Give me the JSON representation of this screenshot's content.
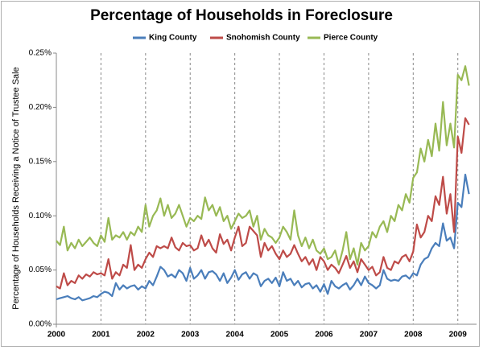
{
  "chart_data": {
    "type": "line",
    "title": "Percentage of Households in Foreclosure",
    "y_label": "Percentage of Households Receiving a Notice of Trustee Sale",
    "x": [
      2000,
      2000.083,
      2000.167,
      2000.25,
      2000.333,
      2000.417,
      2000.5,
      2000.583,
      2000.667,
      2000.75,
      2000.833,
      2000.917,
      2001,
      2001.083,
      2001.167,
      2001.25,
      2001.333,
      2001.417,
      2001.5,
      2001.583,
      2001.667,
      2001.75,
      2001.833,
      2001.917,
      2002,
      2002.083,
      2002.167,
      2002.25,
      2002.333,
      2002.417,
      2002.5,
      2002.583,
      2002.667,
      2002.75,
      2002.833,
      2002.917,
      2003,
      2003.083,
      2003.167,
      2003.25,
      2003.333,
      2003.417,
      2003.5,
      2003.583,
      2003.667,
      2003.75,
      2003.833,
      2003.917,
      2004,
      2004.083,
      2004.167,
      2004.25,
      2004.333,
      2004.417,
      2004.5,
      2004.583,
      2004.667,
      2004.75,
      2004.833,
      2004.917,
      2005,
      2005.083,
      2005.167,
      2005.25,
      2005.333,
      2005.417,
      2005.5,
      2005.583,
      2005.667,
      2005.75,
      2005.833,
      2005.917,
      2006,
      2006.083,
      2006.167,
      2006.25,
      2006.333,
      2006.417,
      2006.5,
      2006.583,
      2006.667,
      2006.75,
      2006.833,
      2006.917,
      2007,
      2007.083,
      2007.167,
      2007.25,
      2007.333,
      2007.417,
      2007.5,
      2007.583,
      2007.667,
      2007.75,
      2007.833,
      2007.917,
      2008,
      2008.083,
      2008.167,
      2008.25,
      2008.333,
      2008.417,
      2008.5,
      2008.583,
      2008.667,
      2008.75,
      2008.833,
      2008.917,
      2009,
      2009.083,
      2009.167,
      2009.25
    ],
    "series": [
      {
        "name": "King County",
        "color": "#4a7ebb",
        "values": [
          0.023,
          0.024,
          0.025,
          0.026,
          0.024,
          0.023,
          0.025,
          0.022,
          0.023,
          0.024,
          0.026,
          0.025,
          0.028,
          0.03,
          0.029,
          0.026,
          0.038,
          0.032,
          0.036,
          0.033,
          0.035,
          0.036,
          0.032,
          0.035,
          0.033,
          0.04,
          0.036,
          0.044,
          0.053,
          0.05,
          0.044,
          0.046,
          0.043,
          0.05,
          0.047,
          0.04,
          0.052,
          0.042,
          0.045,
          0.05,
          0.042,
          0.048,
          0.049,
          0.046,
          0.04,
          0.047,
          0.038,
          0.043,
          0.05,
          0.041,
          0.046,
          0.048,
          0.042,
          0.047,
          0.045,
          0.035,
          0.04,
          0.042,
          0.038,
          0.043,
          0.035,
          0.048,
          0.04,
          0.042,
          0.036,
          0.04,
          0.034,
          0.037,
          0.038,
          0.033,
          0.036,
          0.03,
          0.037,
          0.028,
          0.04,
          0.035,
          0.033,
          0.036,
          0.038,
          0.032,
          0.036,
          0.042,
          0.036,
          0.044,
          0.038,
          0.036,
          0.033,
          0.036,
          0.05,
          0.042,
          0.04,
          0.041,
          0.04,
          0.044,
          0.045,
          0.042,
          0.047,
          0.045,
          0.055,
          0.06,
          0.062,
          0.07,
          0.075,
          0.072,
          0.093,
          0.077,
          0.08,
          0.07,
          0.112,
          0.108,
          0.138,
          0.12
        ]
      },
      {
        "name": "Snohomish County",
        "color": "#be4b48",
        "values": [
          0.035,
          0.033,
          0.047,
          0.036,
          0.04,
          0.038,
          0.045,
          0.042,
          0.046,
          0.044,
          0.048,
          0.046,
          0.047,
          0.045,
          0.06,
          0.042,
          0.048,
          0.045,
          0.055,
          0.052,
          0.073,
          0.05,
          0.055,
          0.052,
          0.06,
          0.066,
          0.062,
          0.072,
          0.07,
          0.072,
          0.07,
          0.08,
          0.071,
          0.068,
          0.075,
          0.072,
          0.073,
          0.068,
          0.07,
          0.082,
          0.072,
          0.078,
          0.07,
          0.066,
          0.083,
          0.074,
          0.078,
          0.068,
          0.08,
          0.09,
          0.072,
          0.075,
          0.09,
          0.086,
          0.082,
          0.062,
          0.075,
          0.068,
          0.072,
          0.065,
          0.06,
          0.068,
          0.062,
          0.065,
          0.073,
          0.065,
          0.058,
          0.062,
          0.055,
          0.06,
          0.05,
          0.062,
          0.058,
          0.05,
          0.055,
          0.052,
          0.047,
          0.055,
          0.063,
          0.052,
          0.058,
          0.048,
          0.06,
          0.055,
          0.05,
          0.053,
          0.045,
          0.048,
          0.062,
          0.052,
          0.05,
          0.058,
          0.056,
          0.062,
          0.064,
          0.058,
          0.067,
          0.092,
          0.08,
          0.085,
          0.1,
          0.095,
          0.118,
          0.11,
          0.136,
          0.102,
          0.12,
          0.085,
          0.173,
          0.158,
          0.19,
          0.184
        ]
      },
      {
        "name": "Pierce County",
        "color": "#98b954",
        "values": [
          0.077,
          0.073,
          0.09,
          0.068,
          0.075,
          0.07,
          0.078,
          0.072,
          0.076,
          0.08,
          0.075,
          0.072,
          0.082,
          0.076,
          0.098,
          0.078,
          0.082,
          0.08,
          0.085,
          0.078,
          0.085,
          0.082,
          0.09,
          0.085,
          0.11,
          0.09,
          0.1,
          0.105,
          0.116,
          0.1,
          0.11,
          0.098,
          0.102,
          0.11,
          0.1,
          0.09,
          0.098,
          0.095,
          0.1,
          0.097,
          0.117,
          0.105,
          0.11,
          0.1,
          0.108,
          0.095,
          0.1,
          0.088,
          0.095,
          0.102,
          0.098,
          0.1,
          0.105,
          0.09,
          0.1,
          0.078,
          0.088,
          0.082,
          0.08,
          0.075,
          0.08,
          0.09,
          0.085,
          0.078,
          0.105,
          0.082,
          0.072,
          0.08,
          0.07,
          0.078,
          0.068,
          0.065,
          0.07,
          0.06,
          0.062,
          0.068,
          0.055,
          0.068,
          0.085,
          0.06,
          0.07,
          0.055,
          0.075,
          0.068,
          0.072,
          0.085,
          0.08,
          0.09,
          0.095,
          0.085,
          0.1,
          0.095,
          0.11,
          0.105,
          0.12,
          0.112,
          0.135,
          0.14,
          0.162,
          0.15,
          0.17,
          0.155,
          0.185,
          0.16,
          0.205,
          0.165,
          0.185,
          0.163,
          0.23,
          0.225,
          0.238,
          0.22
        ]
      }
    ],
    "xlim": [
      2000,
      2009.42
    ],
    "xticks": [
      2000,
      2001,
      2002,
      2003,
      2004,
      2005,
      2006,
      2007,
      2008,
      2009
    ],
    "ylim": [
      0,
      0.25
    ],
    "yticks": [
      {
        "value": 0,
        "label": "0.00%"
      },
      {
        "value": 0.05,
        "label": "0.05%"
      },
      {
        "value": 0.1,
        "label": "0.10%"
      },
      {
        "value": 0.15,
        "label": "0.15%"
      },
      {
        "value": 0.2,
        "label": "0.20%"
      },
      {
        "value": 0.25,
        "label": "0.25%"
      }
    ],
    "x_grid": true,
    "legend": "top"
  }
}
